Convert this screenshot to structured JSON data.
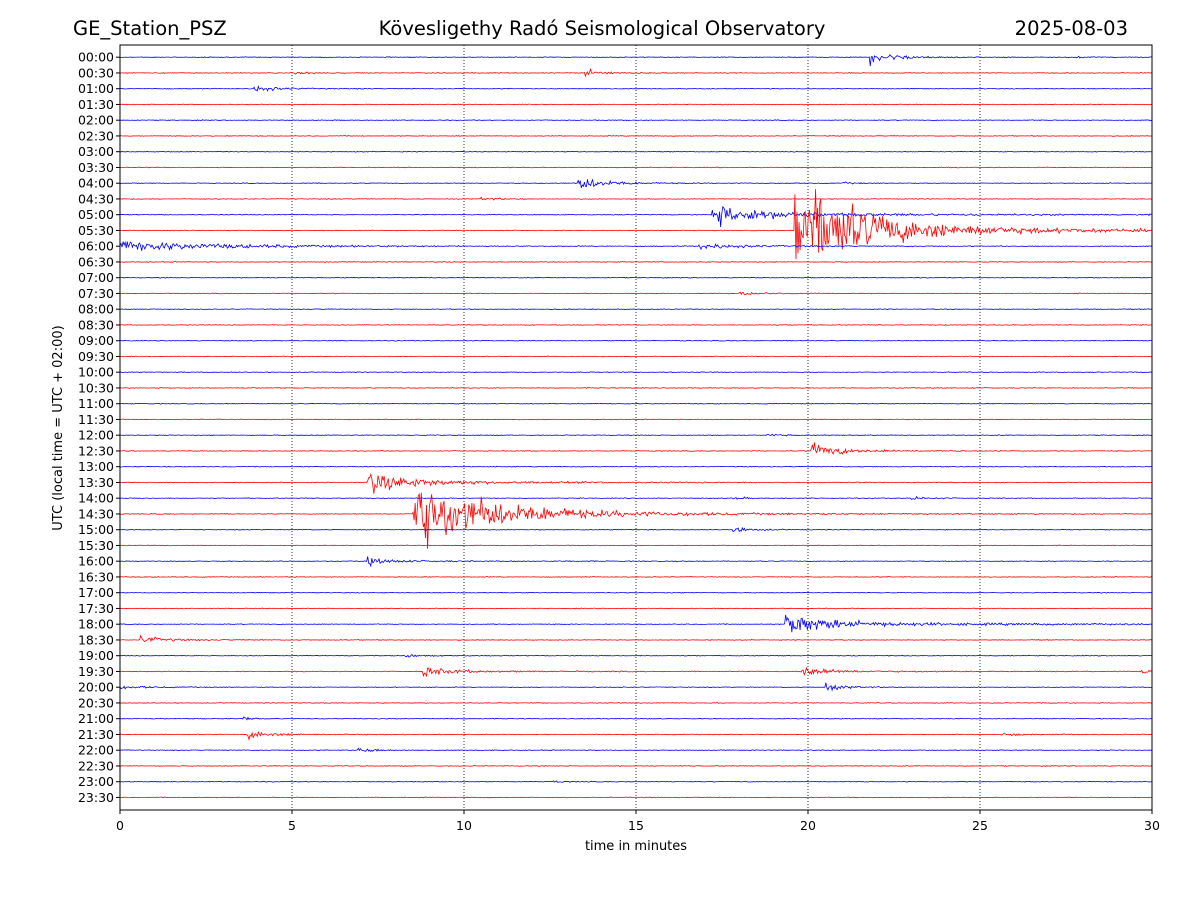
{
  "header": {
    "station": "GE_Station_PSZ",
    "observatory": "Kövesligethy Radó Seismological Observatory",
    "date": "2025-08-03"
  },
  "chart_data": {
    "type": "line",
    "title": "Kövesligethy Radó Seismological Observatory",
    "xlabel": "time in minutes",
    "ylabel": "UTC (local time = UTC + 02:00)",
    "xlim": [
      0,
      30
    ],
    "x_ticks": [
      "0",
      "5",
      "10",
      "15",
      "20",
      "25",
      "30"
    ],
    "grid": "vertical dotted lines at 5-minute intervals",
    "colors": {
      "even_rows": "#0000ff",
      "odd_rows": "#ff0000"
    },
    "rows": [
      "00:00",
      "00:30",
      "01:00",
      "01:30",
      "02:00",
      "02:30",
      "03:00",
      "03:30",
      "04:00",
      "04:30",
      "05:00",
      "05:30",
      "06:00",
      "06:30",
      "07:00",
      "07:30",
      "08:00",
      "08:30",
      "09:00",
      "09:30",
      "10:00",
      "10:30",
      "11:00",
      "11:30",
      "12:00",
      "12:30",
      "13:00",
      "13:30",
      "14:00",
      "14:30",
      "15:00",
      "15:30",
      "16:00",
      "16:30",
      "17:00",
      "17:30",
      "18:00",
      "18:30",
      "19:00",
      "19:30",
      "20:00",
      "20:30",
      "21:00",
      "21:30",
      "22:00",
      "22:30",
      "23:00",
      "23:30"
    ],
    "events": [
      {
        "row": "00:00",
        "start_min": 21.8,
        "peak": 9,
        "decay_min": 0.6,
        "tail_min": 1.5,
        "tail_amp": 1.5,
        "osc": 0.4
      },
      {
        "row": "00:00",
        "start_min": 27.8,
        "peak": 1.2,
        "decay_min": 0.3,
        "tail_min": 0.8,
        "tail_amp": 0.3,
        "osc": 0.4
      },
      {
        "row": "00:30",
        "start_min": 5.1,
        "peak": 2,
        "decay_min": 0.5,
        "tail_min": 0.7,
        "tail_amp": 0.5,
        "osc": 0.3
      },
      {
        "row": "00:30",
        "start_min": 13.5,
        "peak": 6,
        "decay_min": 0.3,
        "tail_min": 1.2,
        "tail_amp": 1.0,
        "osc": 0.4
      },
      {
        "row": "01:00",
        "start_min": 3.9,
        "peak": 5,
        "decay_min": 0.4,
        "tail_min": 1.5,
        "tail_amp": 1.0,
        "osc": 0.4
      },
      {
        "row": "04:00",
        "start_min": 13.3,
        "peak": 10,
        "decay_min": 0.6,
        "tail_min": 1.8,
        "tail_amp": 1.5,
        "osc": 0.5
      },
      {
        "row": "04:00",
        "start_min": 21.0,
        "peak": 1.2,
        "decay_min": 0.3,
        "tail_min": 0.6,
        "tail_amp": 0.3,
        "osc": 0.5
      },
      {
        "row": "04:30",
        "start_min": 10.5,
        "peak": 2,
        "decay_min": 0.4,
        "tail_min": 0.6,
        "tail_amp": 0.4,
        "osc": 0.5
      },
      {
        "row": "05:00",
        "start_min": 17.2,
        "peak": 14,
        "decay_min": 1.4,
        "tail_min": 9.0,
        "tail_amp": 2.0,
        "osc": 0.5
      },
      {
        "row": "05:30",
        "start_min": 19.6,
        "peak": 80,
        "decay_min": 1.8,
        "tail_min": 11.0,
        "tail_amp": 4.0,
        "osc": 0.5
      },
      {
        "row": "06:00",
        "start_min": 0.0,
        "peak": 7,
        "decay_min": 2.5,
        "tail_min": 5.0,
        "tail_amp": 1.5,
        "osc": 0.6
      },
      {
        "row": "06:00",
        "start_min": 16.8,
        "peak": 4,
        "decay_min": 0.8,
        "tail_min": 3.5,
        "tail_amp": 1.0,
        "osc": 0.6
      },
      {
        "row": "07:30",
        "start_min": 18.0,
        "peak": 3,
        "decay_min": 0.4,
        "tail_min": 1.0,
        "tail_amp": 0.6,
        "osc": 0.5
      },
      {
        "row": "12:00",
        "start_min": 18.8,
        "peak": 2,
        "decay_min": 0.3,
        "tail_min": 0.5,
        "tail_amp": 0.3,
        "osc": 0.5
      },
      {
        "row": "12:30",
        "start_min": 20.1,
        "peak": 10,
        "decay_min": 0.7,
        "tail_min": 2.0,
        "tail_amp": 1.5,
        "osc": 0.5
      },
      {
        "row": "13:30",
        "start_min": 7.2,
        "peak": 16,
        "decay_min": 1.0,
        "tail_min": 5.0,
        "tail_amp": 2.5,
        "osc": 0.5
      },
      {
        "row": "14:00",
        "start_min": 17.8,
        "peak": 2,
        "decay_min": 0.3,
        "tail_min": 0.8,
        "tail_amp": 0.4,
        "osc": 0.5
      },
      {
        "row": "14:00",
        "start_min": 23.0,
        "peak": 2,
        "decay_min": 0.4,
        "tail_min": 1.0,
        "tail_amp": 0.4,
        "osc": 0.5
      },
      {
        "row": "14:30",
        "start_min": 8.5,
        "peak": 55,
        "decay_min": 2.0,
        "tail_min": 7.5,
        "tail_amp": 3.0,
        "osc": 0.6
      },
      {
        "row": "15:00",
        "start_min": 17.8,
        "peak": 4,
        "decay_min": 0.4,
        "tail_min": 1.2,
        "tail_amp": 0.8,
        "osc": 0.5
      },
      {
        "row": "16:00",
        "start_min": 7.2,
        "peak": 5,
        "decay_min": 0.5,
        "tail_min": 3.0,
        "tail_amp": 1.0,
        "osc": 0.5
      },
      {
        "row": "18:00",
        "start_min": 19.3,
        "peak": 16,
        "decay_min": 1.2,
        "tail_min": 10.5,
        "tail_amp": 2.0,
        "osc": 0.5
      },
      {
        "row": "18:30",
        "start_min": 0.6,
        "peak": 5,
        "decay_min": 0.5,
        "tail_min": 2.0,
        "tail_amp": 1.0,
        "osc": 0.5
      },
      {
        "row": "19:00",
        "start_min": 8.3,
        "peak": 2,
        "decay_min": 0.4,
        "tail_min": 1.0,
        "tail_amp": 0.4,
        "osc": 0.5
      },
      {
        "row": "19:30",
        "start_min": 8.8,
        "peak": 7,
        "decay_min": 0.6,
        "tail_min": 3.5,
        "tail_amp": 1.2,
        "osc": 0.5
      },
      {
        "row": "19:30",
        "start_min": 19.8,
        "peak": 9,
        "decay_min": 0.5,
        "tail_min": 3.5,
        "tail_amp": 1.2,
        "osc": 0.5
      },
      {
        "row": "19:30",
        "start_min": 29.7,
        "peak": 4,
        "decay_min": 0.2,
        "tail_min": 0.3,
        "tail_amp": 1.0,
        "osc": 0.5
      },
      {
        "row": "20:00",
        "start_min": 0.0,
        "peak": 1.5,
        "decay_min": 1.0,
        "tail_min": 1.0,
        "tail_amp": 0.5,
        "osc": 0.5
      },
      {
        "row": "20:00",
        "start_min": 20.5,
        "peak": 5,
        "decay_min": 0.4,
        "tail_min": 1.5,
        "tail_amp": 0.8,
        "osc": 0.5
      },
      {
        "row": "21:00",
        "start_min": 3.6,
        "peak": 3,
        "decay_min": 0.2,
        "tail_min": 0.5,
        "tail_amp": 0.4,
        "osc": 0.5
      },
      {
        "row": "21:30",
        "start_min": 3.7,
        "peak": 6,
        "decay_min": 0.5,
        "tail_min": 1.5,
        "tail_amp": 1.0,
        "osc": 0.5
      },
      {
        "row": "21:30",
        "start_min": 25.6,
        "peak": 2,
        "decay_min": 0.4,
        "tail_min": 1.5,
        "tail_amp": 0.4,
        "osc": 0.5
      },
      {
        "row": "22:00",
        "start_min": 6.9,
        "peak": 4,
        "decay_min": 0.4,
        "tail_min": 1.0,
        "tail_amp": 0.6,
        "osc": 0.5
      },
      {
        "row": "23:00",
        "start_min": 12.6,
        "peak": 1.5,
        "decay_min": 0.2,
        "tail_min": 0.4,
        "tail_amp": 0.3,
        "osc": 0.5
      }
    ]
  }
}
